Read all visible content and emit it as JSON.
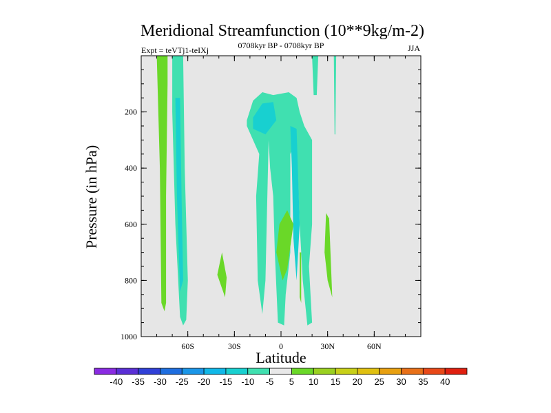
{
  "chart_data": {
    "type": "contour",
    "title": "Meridional Streamfunction (10**9kg/m-2)",
    "left_label": "Expt = teVTj1-teIXj",
    "center_label": "0708kyr BP - 0708kyr BP",
    "right_label": "JJA",
    "xlabel": "Latitude",
    "ylabel": "Pressure (in hPa)",
    "xlim": [
      -90,
      90
    ],
    "ylim": [
      1000,
      0
    ],
    "x_ticks": [
      {
        "value": -60,
        "label": "60S"
      },
      {
        "value": -30,
        "label": "30S"
      },
      {
        "value": 0,
        "label": "0"
      },
      {
        "value": 30,
        "label": "30N"
      },
      {
        "value": 60,
        "label": "60N"
      }
    ],
    "y_ticks": [
      {
        "value": 200,
        "label": "200"
      },
      {
        "value": 400,
        "label": "400"
      },
      {
        "value": 600,
        "label": "600"
      },
      {
        "value": 800,
        "label": "800"
      },
      {
        "value": 1000,
        "label": "1000"
      }
    ],
    "colorbar": {
      "labels": [
        "-40",
        "-35",
        "-30",
        "-25",
        "-20",
        "-15",
        "-10",
        "-5",
        "5",
        "10",
        "15",
        "20",
        "25",
        "30",
        "35",
        "40"
      ],
      "colors": [
        "#8a2be2",
        "#5a2fd6",
        "#3040d8",
        "#1e6ee0",
        "#1a96e8",
        "#10b8e8",
        "#18d0d0",
        "#40e0b0",
        "#e8e8e8",
        "#6ad828",
        "#9ad020",
        "#c8d018",
        "#e0c010",
        "#e8a010",
        "#e87018",
        "#e84818",
        "#e02010"
      ]
    },
    "features": [
      {
        "name": "green band near 75S",
        "sign": "positive",
        "level": 5,
        "lat_range": [
          -80,
          -73
        ],
        "p_range": [
          0,
          910
        ]
      },
      {
        "name": "cyan band near 65S",
        "sign": "negative",
        "level": -5,
        "lat_range": [
          -70,
          -60
        ],
        "p_range": [
          0,
          960
        ]
      },
      {
        "name": "green lobe near 40S",
        "sign": "positive",
        "level": 5,
        "lat_range": [
          -42,
          -35
        ],
        "p_range": [
          700,
          860
        ]
      },
      {
        "name": "upper cell near 10S",
        "sign": "negative",
        "level": -5,
        "lat_range": [
          -22,
          12
        ],
        "p_range": [
          130,
          320
        ]
      },
      {
        "name": "column near 10S",
        "sign": "negative",
        "level": -5,
        "lat_range": [
          -16,
          -5
        ],
        "p_range": [
          300,
          950
        ]
      },
      {
        "name": "column near 10N",
        "sign": "negative",
        "level": -5,
        "lat_range": [
          5,
          20
        ],
        "p_range": [
          250,
          960
        ]
      },
      {
        "name": "green near 3N",
        "sign": "positive",
        "level": 5,
        "lat_range": [
          -3,
          8
        ],
        "p_range": [
          580,
          800
        ]
      },
      {
        "name": "green near 30N",
        "sign": "positive",
        "level": 5,
        "lat_range": [
          28,
          33
        ],
        "p_range": [
          580,
          860
        ]
      },
      {
        "name": "thin near 35N",
        "sign": "negative",
        "level": -5,
        "lat_range": [
          34,
          35.5
        ],
        "p_range": [
          0,
          280
        ]
      },
      {
        "name": "upper near 20N",
        "sign": "negative",
        "level": -5,
        "lat_range": [
          20,
          24
        ],
        "p_range": [
          0,
          140
        ]
      }
    ]
  }
}
